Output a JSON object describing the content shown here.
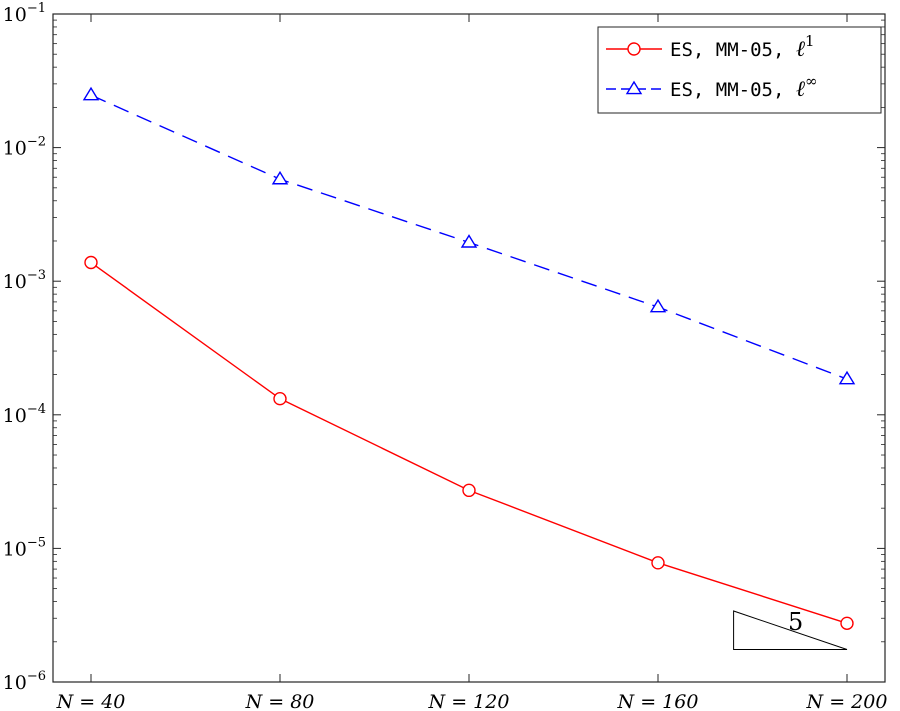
{
  "chart_data": {
    "type": "line",
    "title": "",
    "xlabel": "",
    "ylabel": "",
    "y_scale": "log",
    "ylim": [
      1e-06,
      0.1
    ],
    "xlim": [
      40,
      200
    ],
    "grid": false,
    "legend_position": "top-right",
    "categories": [
      "N = 40",
      "N = 80",
      "N = 120",
      "N = 160",
      "N = 200"
    ],
    "x": [
      40,
      80,
      120,
      160,
      200
    ],
    "y_ticks": [
      {
        "value": 1e-06,
        "base": "10",
        "exp": "−6"
      },
      {
        "value": 1e-05,
        "base": "10",
        "exp": "−5"
      },
      {
        "value": 0.0001,
        "base": "10",
        "exp": "−4"
      },
      {
        "value": 0.001,
        "base": "10",
        "exp": "−3"
      },
      {
        "value": 0.01,
        "base": "10",
        "exp": "−2"
      },
      {
        "value": 0.1,
        "base": "10",
        "exp": "−1"
      }
    ],
    "series": [
      {
        "name": "ES, MM-05, ℓ¹",
        "name_text": "ES, MM-05, ",
        "name_math": "ℓ",
        "name_sup": "1",
        "color": "#ff0000",
        "line_style": "solid",
        "marker": "circle",
        "values": [
          0.00138,
          0.000132,
          2.72e-05,
          7.8e-06,
          2.75e-06
        ]
      },
      {
        "name": "ES, MM-05, ℓ∞",
        "name_text": "ES, MM-05, ",
        "name_math": "ℓ",
        "name_sup": "∞",
        "color": "#0000ff",
        "line_style": "dashed",
        "marker": "triangle",
        "values": [
          0.0247,
          0.0058,
          0.00195,
          0.00064,
          0.000185
        ]
      }
    ],
    "annotations": [
      {
        "type": "slope-triangle",
        "label": "5",
        "x_from": 176,
        "x_to": 200,
        "y_low": 1.75e-06,
        "y_high": 3.4e-06
      }
    ]
  }
}
